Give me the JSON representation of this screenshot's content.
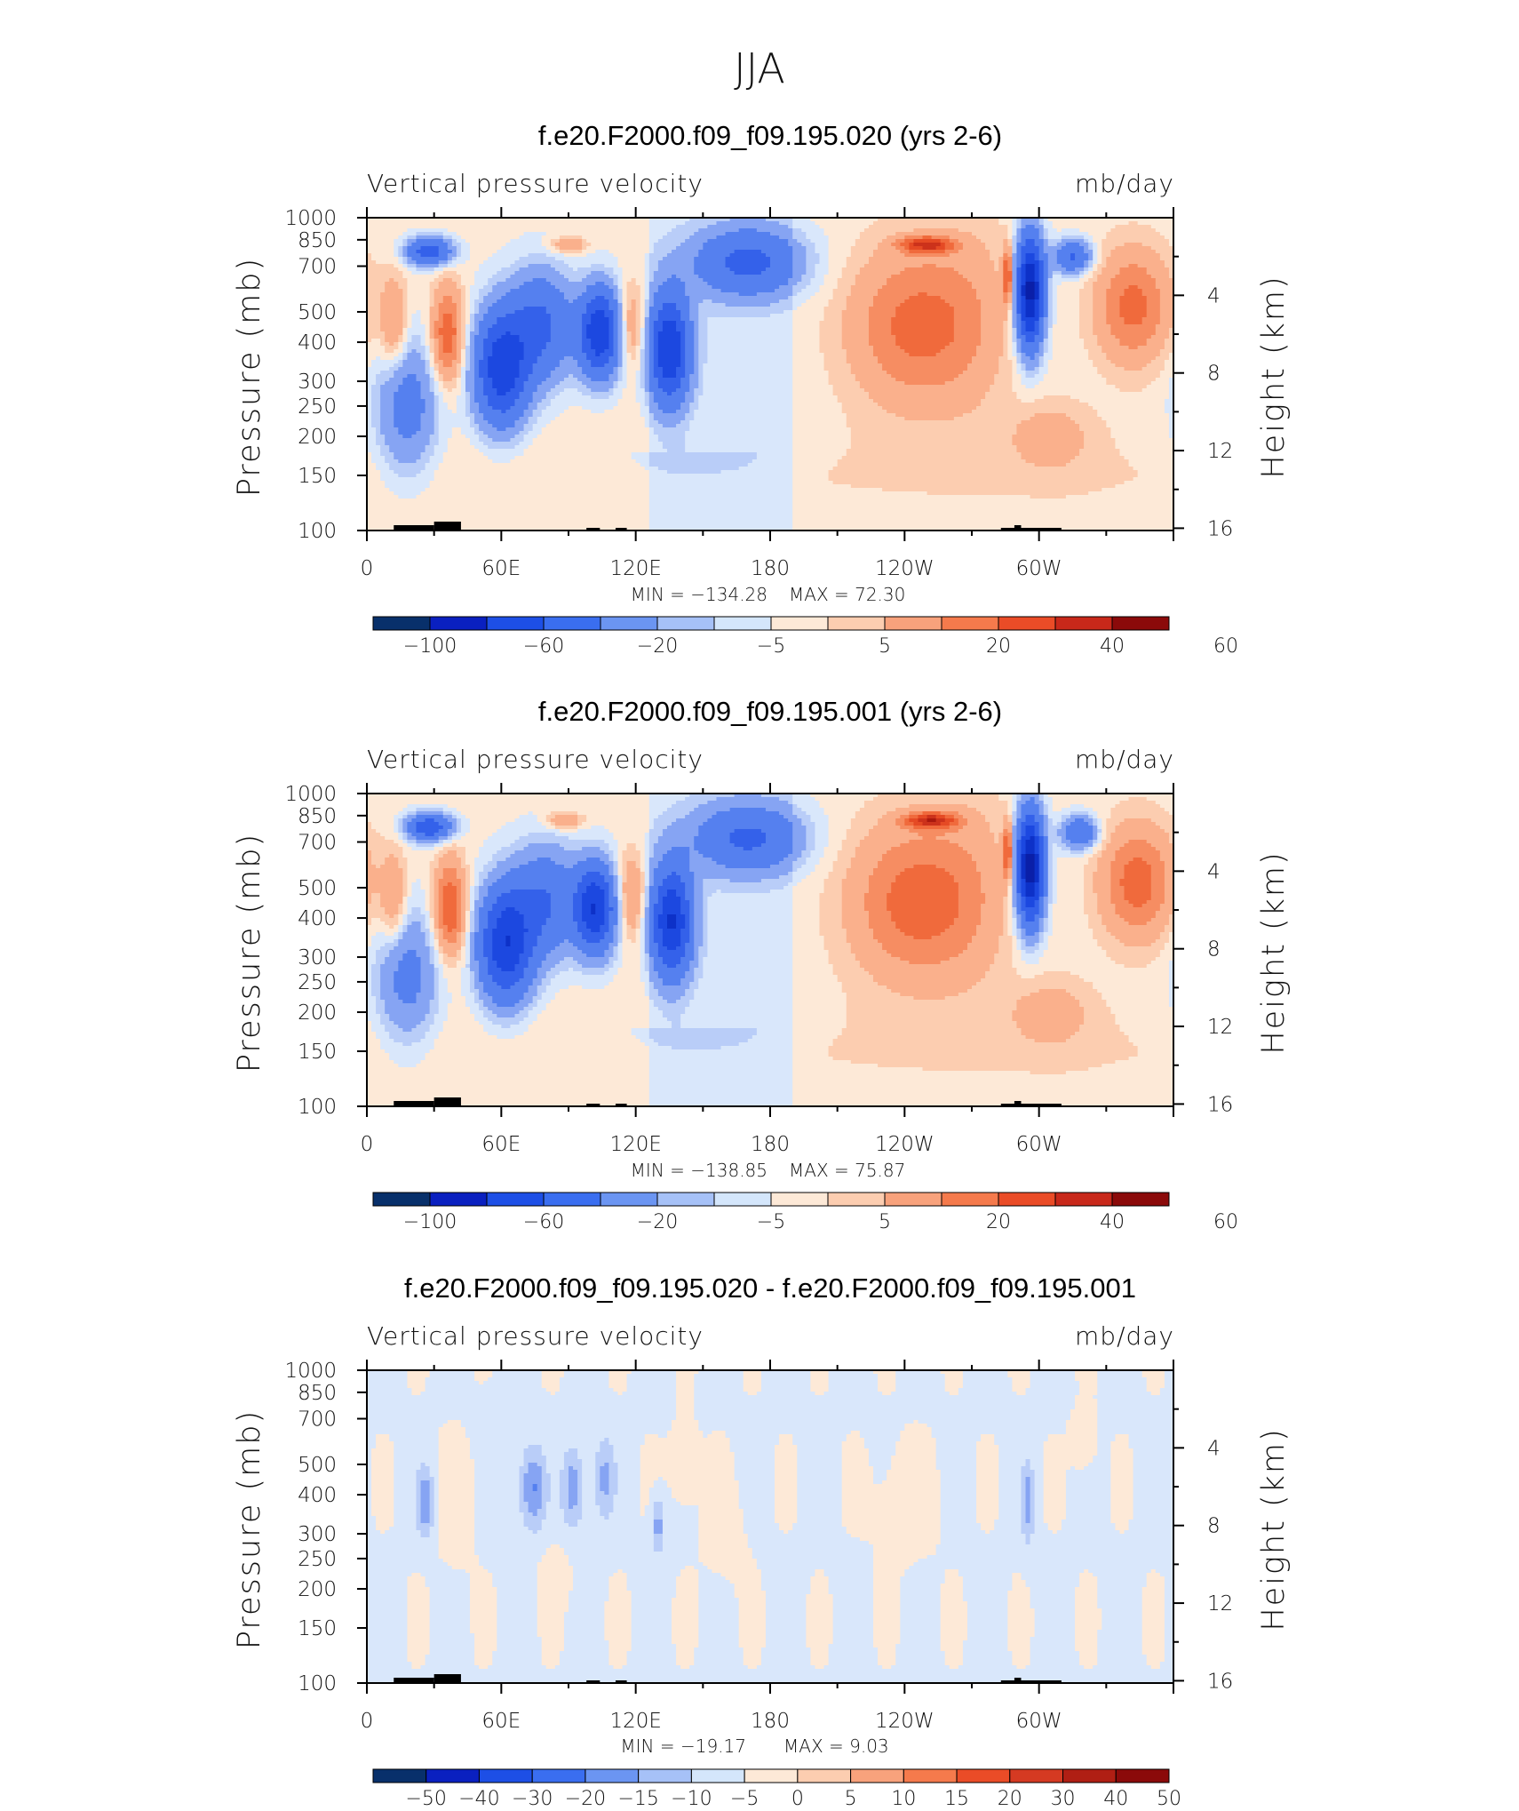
{
  "title": "JJA",
  "chart_data": [
    {
      "type": "heatmap",
      "title": "f.e20.F2000.f09_f09.195.020 (yrs 2-6)",
      "subtitle_left": "Vertical pressure velocity",
      "subtitle_right": "mb/day",
      "ylabel": "Pressure (mb)",
      "ylabel_right": "Height (km)",
      "x_ticks": [
        "0",
        "60E",
        "120E",
        "180",
        "120W",
        "60W"
      ],
      "y_ticks": [
        "100",
        "150",
        "200",
        "250",
        "300",
        "400",
        "500",
        "700",
        "850",
        "1000"
      ],
      "y_ticks_right": [
        "16",
        "12",
        "8",
        "4"
      ],
      "min_label": "MIN = −134.28",
      "max_label": "MAX = 72.30",
      "min": -134.28,
      "max": 72.3,
      "colorbar_labels": [
        "−100",
        "−60",
        "−20",
        "−5",
        "5",
        "20",
        "40",
        "60"
      ],
      "blobs": [
        {
          "lon": 18,
          "p": 250,
          "w": 14,
          "h": 0.5,
          "v": -30
        },
        {
          "lon": 36,
          "p": 420,
          "w": 7,
          "h": 0.35,
          "v": 38
        },
        {
          "lon": 12,
          "p": 450,
          "w": 6,
          "h": 0.35,
          "v": 22
        },
        {
          "lon": 28,
          "p": 780,
          "w": 10,
          "h": 0.1,
          "v": -55
        },
        {
          "lon": 60,
          "p": 330,
          "w": 12,
          "h": 0.42,
          "v": -75
        },
        {
          "lon": 78,
          "p": 450,
          "w": 14,
          "h": 0.4,
          "v": -45
        },
        {
          "lon": 104,
          "p": 430,
          "w": 9,
          "h": 0.32,
          "v": -80
        },
        {
          "lon": 118,
          "p": 450,
          "w": 6,
          "h": 0.3,
          "v": 20
        },
        {
          "lon": 135,
          "p": 380,
          "w": 9,
          "h": 0.4,
          "v": -78
        },
        {
          "lon": 170,
          "p": 720,
          "w": 24,
          "h": 0.25,
          "v": -45
        },
        {
          "lon": 90,
          "p": 820,
          "w": 8,
          "h": 0.06,
          "v": 18
        },
        {
          "lon": 245,
          "p": 450,
          "w": 28,
          "h": 0.55,
          "v": 32
        },
        {
          "lon": 250,
          "p": 820,
          "w": 12,
          "h": 0.06,
          "v": 45
        },
        {
          "lon": 270,
          "p": 500,
          "w": 18,
          "h": 0.75,
          "v": 8
        },
        {
          "lon": 296,
          "p": 580,
          "w": 6,
          "h": 0.4,
          "v": -110
        },
        {
          "lon": 286,
          "p": 650,
          "w": 2,
          "h": 0.2,
          "v": 45
        },
        {
          "lon": 315,
          "p": 750,
          "w": 8,
          "h": 0.12,
          "v": -45
        },
        {
          "lon": 342,
          "p": 520,
          "w": 16,
          "h": 0.4,
          "v": 32
        },
        {
          "lon": 305,
          "p": 200,
          "w": 18,
          "h": 0.25,
          "v": 12
        },
        {
          "lon": 150,
          "p": 170,
          "w": 30,
          "h": 0.15,
          "v": -5
        }
      ]
    },
    {
      "type": "heatmap",
      "title": "f.e20.F2000.f09_f09.195.001 (yrs 2-6)",
      "subtitle_left": "Vertical pressure velocity",
      "subtitle_right": "mb/day",
      "ylabel": "Pressure (mb)",
      "ylabel_right": "Height (km)",
      "x_ticks": [
        "0",
        "60E",
        "120E",
        "180",
        "120W",
        "60W"
      ],
      "y_ticks": [
        "100",
        "150",
        "200",
        "250",
        "300",
        "400",
        "500",
        "700",
        "850",
        "1000"
      ],
      "y_ticks_right": [
        "16",
        "12",
        "8",
        "4"
      ],
      "min_label": "MIN = −138.85",
      "max_label": "MAX = 75.87",
      "min": -138.85,
      "max": 75.87,
      "colorbar_labels": [
        "−100",
        "−60",
        "−20",
        "−5",
        "5",
        "20",
        "40",
        "60"
      ],
      "blobs": [
        {
          "lon": 18,
          "p": 260,
          "w": 14,
          "h": 0.5,
          "v": -28
        },
        {
          "lon": 37,
          "p": 430,
          "w": 7,
          "h": 0.35,
          "v": 40
        },
        {
          "lon": 12,
          "p": 450,
          "w": 6,
          "h": 0.35,
          "v": 20
        },
        {
          "lon": 28,
          "p": 780,
          "w": 10,
          "h": 0.1,
          "v": -58
        },
        {
          "lon": 62,
          "p": 330,
          "w": 12,
          "h": 0.42,
          "v": -78
        },
        {
          "lon": 80,
          "p": 450,
          "w": 14,
          "h": 0.4,
          "v": -40
        },
        {
          "lon": 102,
          "p": 430,
          "w": 9,
          "h": 0.32,
          "v": -80
        },
        {
          "lon": 118,
          "p": 470,
          "w": 6,
          "h": 0.3,
          "v": 22
        },
        {
          "lon": 136,
          "p": 390,
          "w": 9,
          "h": 0.4,
          "v": -80
        },
        {
          "lon": 170,
          "p": 720,
          "w": 24,
          "h": 0.25,
          "v": -42
        },
        {
          "lon": 88,
          "p": 820,
          "w": 8,
          "h": 0.06,
          "v": 20
        },
        {
          "lon": 245,
          "p": 450,
          "w": 28,
          "h": 0.55,
          "v": 34
        },
        {
          "lon": 252,
          "p": 820,
          "w": 12,
          "h": 0.06,
          "v": 48
        },
        {
          "lon": 270,
          "p": 500,
          "w": 18,
          "h": 0.75,
          "v": 8
        },
        {
          "lon": 296,
          "p": 580,
          "w": 6,
          "h": 0.4,
          "v": -115
        },
        {
          "lon": 286,
          "p": 650,
          "w": 2,
          "h": 0.2,
          "v": 45
        },
        {
          "lon": 318,
          "p": 750,
          "w": 8,
          "h": 0.12,
          "v": -42
        },
        {
          "lon": 344,
          "p": 520,
          "w": 16,
          "h": 0.4,
          "v": 34
        },
        {
          "lon": 305,
          "p": 200,
          "w": 18,
          "h": 0.25,
          "v": 12
        },
        {
          "lon": 150,
          "p": 170,
          "w": 30,
          "h": 0.15,
          "v": -5
        }
      ]
    },
    {
      "type": "heatmap",
      "title": "f.e20.F2000.f09_f09.195.020 - f.e20.F2000.f09_f09.195.001",
      "subtitle_left": "Vertical pressure velocity",
      "subtitle_right": "mb/day",
      "ylabel": "Pressure (mb)",
      "ylabel_right": "Height (km)",
      "x_ticks": [
        "0",
        "60E",
        "120E",
        "180",
        "120W",
        "60W"
      ],
      "y_ticks": [
        "100",
        "150",
        "200",
        "250",
        "300",
        "400",
        "500",
        "700",
        "850",
        "1000"
      ],
      "y_ticks_right": [
        "16",
        "12",
        "8",
        "4"
      ],
      "min_label": "MIN = −19.17",
      "max_label": "MAX = 9.03",
      "min": -19.17,
      "max": 9.03,
      "colorbar_labels": [
        "−50",
        "−40",
        "−30",
        "−20",
        "−15",
        "−10",
        "−5",
        "0",
        "5",
        "10",
        "15",
        "20",
        "30",
        "40",
        "50"
      ],
      "blobs": [
        {
          "lon": 26,
          "p": 380,
          "w": 4,
          "h": 0.25,
          "v": -14
        },
        {
          "lon": 74,
          "p": 420,
          "w": 6,
          "h": 0.3,
          "v": -15
        },
        {
          "lon": 92,
          "p": 420,
          "w": 5,
          "h": 0.3,
          "v": -13
        },
        {
          "lon": 106,
          "p": 450,
          "w": 5,
          "h": 0.3,
          "v": -11
        },
        {
          "lon": 130,
          "p": 320,
          "w": 3,
          "h": 0.2,
          "v": -12
        },
        {
          "lon": 295,
          "p": 380,
          "w": 3,
          "h": 0.3,
          "v": -12
        },
        {
          "lon": 40,
          "p": 380,
          "w": 8,
          "h": 0.4,
          "v": 4
        },
        {
          "lon": 84,
          "p": 220,
          "w": 6,
          "h": 0.2,
          "v": 4
        },
        {
          "lon": 142,
          "p": 500,
          "w": 6,
          "h": 0.3,
          "v": 4
        },
        {
          "lon": 240,
          "p": 380,
          "w": 14,
          "h": 0.4,
          "v": 3
        },
        {
          "lon": 160,
          "p": 300,
          "w": 10,
          "h": 0.4,
          "v": 2
        },
        {
          "lon": 320,
          "p": 600,
          "w": 5,
          "h": 0.2,
          "v": 5
        },
        {
          "lon": 60,
          "p": 700,
          "w": 10,
          "h": 0.2,
          "v": -3
        }
      ]
    }
  ]
}
